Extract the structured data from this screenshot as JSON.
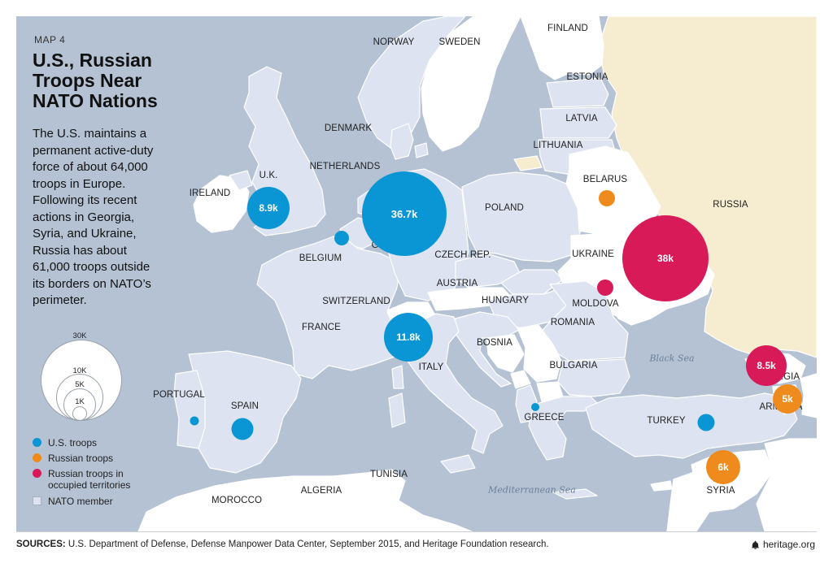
{
  "map_number": "MAP 4",
  "title": "U.S., Russian Troops Near NATO Nations",
  "description": "The U.S. maintains a permanent active-duty force of about 64,000 troops in Europe. Following its recent actions in Georgia, Syria, and Ukraine, Russia has about 61,000 troops outside its borders on NATO’s perimeter.",
  "colors": {
    "us": "#0a96d4",
    "russian": "#ef8a1c",
    "russian_occupied": "#d81a59",
    "nato_member": "#dde3f0",
    "non_nato": "#ffffff",
    "russia": "#f6ecd0",
    "water": "#b4c2d4"
  },
  "size_legend": [
    "30K",
    "10K",
    "5K",
    "1K"
  ],
  "legend": {
    "us": "U.S. troops",
    "russian": "Russian troops",
    "russian_occupied": "Russian troops in occupied territories",
    "nato_member": "NATO member"
  },
  "countries": {
    "finland": "FINLAND",
    "norway": "NORWAY",
    "sweden": "SWEDEN",
    "estonia": "ESTONIA",
    "latvia": "LATVIA",
    "lithuania": "LITHUANIA",
    "denmark": "DENMARK",
    "netherlands": "NETHERLANDS",
    "uk": "U.K.",
    "ireland": "IRELAND",
    "belarus": "BELARUS",
    "russia": "RUSSIA",
    "poland": "POLAND",
    "germany": "GERMANY",
    "belgium": "BELGIUM",
    "czech": "CZECH REP.",
    "ukraine": "UKRAINE",
    "austria": "AUSTRIA",
    "switzerland": "SWITZERLAND",
    "hungary": "HUNGARY",
    "moldova": "MOLDOVA",
    "france": "FRANCE",
    "romania": "ROMANIA",
    "bosnia": "BOSNIA",
    "italy": "ITALY",
    "bulgaria": "BULGARIA",
    "georgia": "GEORGIA",
    "portugal": "PORTUGAL",
    "spain": "SPAIN",
    "armenia": "ARMENIA",
    "greece": "GREECE",
    "turkey": "TURKEY",
    "tunisia": "TUNISIA",
    "algeria": "ALGERIA",
    "morocco": "MOROCCO",
    "syria": "SYRIA"
  },
  "seas": {
    "black_sea": "Black Sea",
    "mediterranean": "Mediterranean Sea"
  },
  "bubbles": {
    "uk": {
      "label": "8.9k",
      "troops": 8900,
      "force": "us"
    },
    "germany": {
      "label": "36.7k",
      "troops": 36700,
      "force": "us"
    },
    "belgium": {
      "label": "",
      "force": "us"
    },
    "italy": {
      "label": "11.8k",
      "troops": 11800,
      "force": "us"
    },
    "spain": {
      "label": "",
      "force": "us"
    },
    "portugal": {
      "label": "",
      "force": "us"
    },
    "greece": {
      "label": "",
      "force": "us"
    },
    "turkey": {
      "label": "",
      "force": "us"
    },
    "ukraine": {
      "label": "38k",
      "troops": 38000,
      "force": "russian_occupied"
    },
    "moldova": {
      "label": "",
      "force": "russian_occupied"
    },
    "georgia": {
      "label": "8.5k",
      "troops": 8500,
      "force": "russian_occupied"
    },
    "belarus": {
      "label": "",
      "force": "russian"
    },
    "armenia": {
      "label": "5k",
      "troops": 5000,
      "force": "russian"
    },
    "syria": {
      "label": "6k",
      "troops": 6000,
      "force": "russian"
    }
  },
  "sources_label": "SOURCES:",
  "sources_text": "U.S. Department of Defense, Defense Manpower Data Center, September 2015, and Heritage Foundation research.",
  "brand": "heritage.org"
}
